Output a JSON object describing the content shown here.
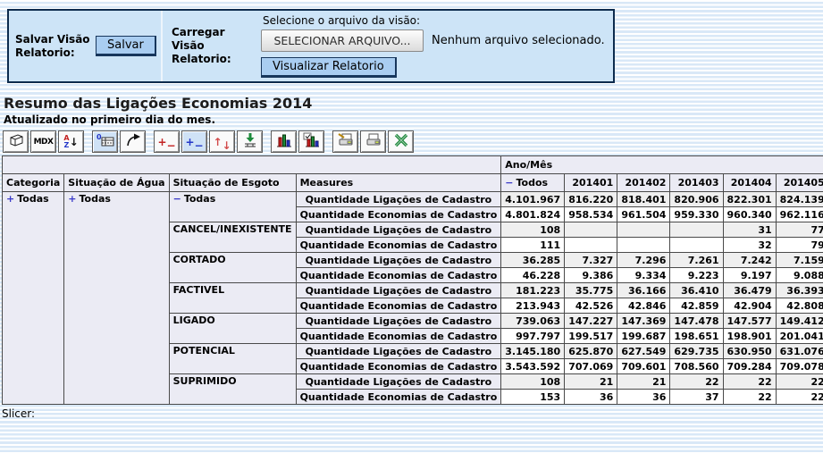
{
  "icons": {
    "plus": "+",
    "minus": "−"
  },
  "save_panel": {
    "save_label": "Salvar Visão Relatorio:",
    "save_button": "Salvar",
    "load_label": "Carregar Visão Relatorio:",
    "file_prompt": "Selecione o arquivo da visão:",
    "file_button": "SELECIONAR ARQUIVO...",
    "file_status": "Nenhum arquivo selecionado.",
    "view_button": "Visualizar Relatorio"
  },
  "report": {
    "title": "Resumo das Ligações Economias 2014",
    "subtitle": "Atualizado no primeiro dia do mes.",
    "slicer_label": "Slicer:"
  },
  "toolbar": {
    "glyphs": {
      "mdx": "MDX",
      "sort_a": "A",
      "sort_z": "Z",
      "arrow_down": "↓",
      "zero": "0",
      "plus": "+",
      "minus": "−",
      "up": "↑",
      "down": "↓"
    },
    "buttons": [
      "olap-navigator",
      "mdx-editor",
      "sort",
      "show-empty-cells",
      "swap-axes",
      "drill-member",
      "drill-position",
      "drill-replace",
      "drill-through",
      "show-chart",
      "chart-config",
      "print-config",
      "print-pdf",
      "export-excel"
    ]
  },
  "table": {
    "dimension_label": "Ano/Mês",
    "row_headers": [
      "Categoria",
      "Situação de Água",
      "Situação de Esgoto",
      "Measures"
    ],
    "columns": [
      "Todos",
      "201401",
      "201402",
      "201403",
      "201404",
      "201405"
    ],
    "rows_categoria": {
      "icon": "plus",
      "label": "Todas"
    },
    "rows_agua": {
      "icon": "plus",
      "label": "Todas"
    },
    "measures": [
      "Quantidade Ligações de Cadastro",
      "Quantidade Economias de Cadastro"
    ],
    "groups": [
      {
        "icon": "minus",
        "label": "Todas",
        "indent": false,
        "values": [
          [
            "4.101.967",
            "816.220",
            "818.401",
            "820.906",
            "822.301",
            "824.139"
          ],
          [
            "4.801.824",
            "958.534",
            "961.504",
            "959.330",
            "960.340",
            "962.116"
          ]
        ]
      },
      {
        "label": "CANCEL/INEXISTENTE",
        "indent": true,
        "values": [
          [
            "108",
            "",
            "",
            "",
            "31",
            "77"
          ],
          [
            "111",
            "",
            "",
            "",
            "32",
            "79"
          ]
        ]
      },
      {
        "label": "CORTADO",
        "indent": true,
        "values": [
          [
            "36.285",
            "7.327",
            "7.296",
            "7.261",
            "7.242",
            "7.159"
          ],
          [
            "46.228",
            "9.386",
            "9.334",
            "9.223",
            "9.197",
            "9.088"
          ]
        ]
      },
      {
        "label": "FACTIVEL",
        "indent": true,
        "values": [
          [
            "181.223",
            "35.775",
            "36.166",
            "36.410",
            "36.479",
            "36.393"
          ],
          [
            "213.943",
            "42.526",
            "42.846",
            "42.859",
            "42.904",
            "42.808"
          ]
        ]
      },
      {
        "label": "LIGADO",
        "indent": true,
        "values": [
          [
            "739.063",
            "147.227",
            "147.369",
            "147.478",
            "147.577",
            "149.412"
          ],
          [
            "997.797",
            "199.517",
            "199.687",
            "198.651",
            "198.901",
            "201.041"
          ]
        ]
      },
      {
        "label": "POTENCIAL",
        "indent": true,
        "values": [
          [
            "3.145.180",
            "625.870",
            "627.549",
            "629.735",
            "630.950",
            "631.076"
          ],
          [
            "3.543.592",
            "707.069",
            "709.601",
            "708.560",
            "709.284",
            "709.078"
          ]
        ]
      },
      {
        "label": "SUPRIMIDO",
        "indent": true,
        "values": [
          [
            "108",
            "21",
            "21",
            "22",
            "22",
            "22"
          ],
          [
            "153",
            "36",
            "36",
            "37",
            "22",
            "22"
          ]
        ]
      }
    ]
  }
}
